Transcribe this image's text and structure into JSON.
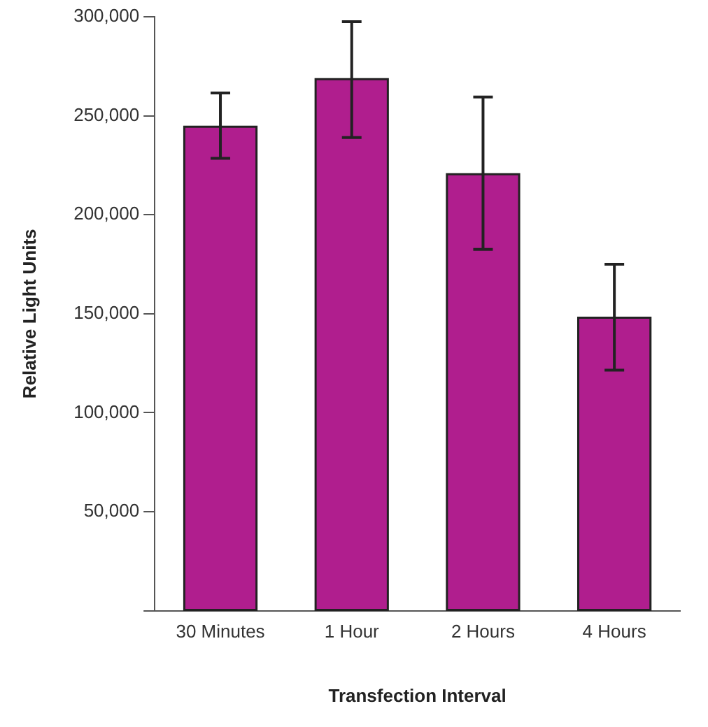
{
  "chart_data": {
    "type": "bar",
    "xlabel": "Transfection Interval",
    "ylabel": "Relative Light Units",
    "categories": [
      "30 Minutes",
      "1 Hour",
      "2 Hours",
      "4 Hours"
    ],
    "values": [
      244500,
      268500,
      220500,
      148000
    ],
    "errors": [
      [
        228500,
        261500
      ],
      [
        239000,
        297500
      ],
      [
        182500,
        259500
      ],
      [
        121500,
        175000
      ]
    ],
    "color": "#b01e8e",
    "ylim": [
      0,
      300000
    ],
    "yticks": [
      {
        "value": 0,
        "label": null
      },
      {
        "value": 50000,
        "label": "50,000"
      },
      {
        "value": 100000,
        "label": "100,000"
      },
      {
        "value": 150000,
        "label": "150,000"
      },
      {
        "value": 200000,
        "label": "200,000"
      },
      {
        "value": 250000,
        "label": "250,000"
      },
      {
        "value": 300000,
        "label": "300,000"
      }
    ],
    "grid": false,
    "legend": false
  }
}
